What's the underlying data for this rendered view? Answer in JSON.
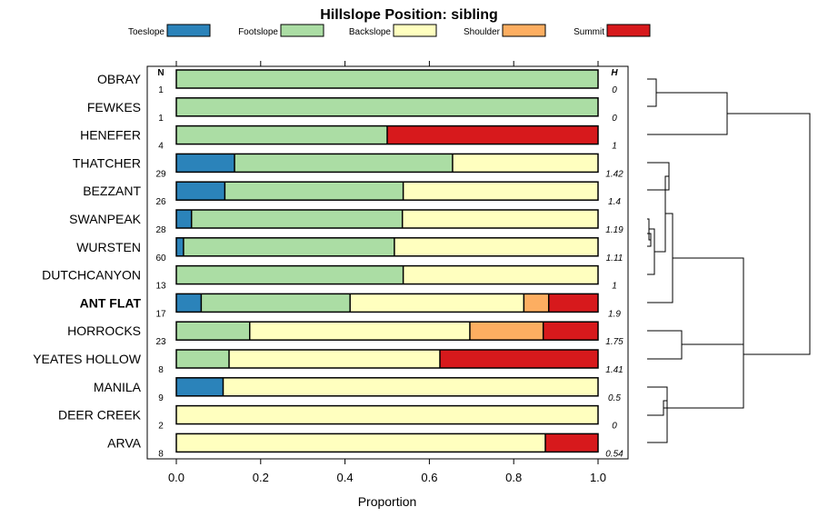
{
  "chart_data": {
    "type": "bar",
    "orientation": "horizontal",
    "stacked": true,
    "title": "Hillslope Position: sibling",
    "xlabel": "Proportion",
    "ylabel": "",
    "xlim": [
      0,
      1
    ],
    "xticks": [
      "0.0",
      "0.2",
      "0.4",
      "0.6",
      "0.8",
      "1.0"
    ],
    "n_header": "N",
    "h_header": "H",
    "highlight": "ANT FLAT",
    "legend": [
      {
        "name": "Toeslope",
        "color": "#2b83ba"
      },
      {
        "name": "Footslope",
        "color": "#abdda4"
      },
      {
        "name": "Backslope",
        "color": "#ffffbf"
      },
      {
        "name": "Shoulder",
        "color": "#fdae61"
      },
      {
        "name": "Summit",
        "color": "#d7191c"
      }
    ],
    "rows": [
      {
        "label": "OBRAY",
        "n": "1",
        "h": "0",
        "values": [
          0,
          1.0,
          0,
          0,
          0
        ]
      },
      {
        "label": "FEWKES",
        "n": "1",
        "h": "0",
        "values": [
          0,
          1.0,
          0,
          0,
          0
        ]
      },
      {
        "label": "HENEFER",
        "n": "4",
        "h": "1",
        "values": [
          0,
          0.5,
          0,
          0,
          0.5
        ]
      },
      {
        "label": "THATCHER",
        "n": "29",
        "h": "1.42",
        "values": [
          0.138,
          0.517,
          0.345,
          0,
          0
        ]
      },
      {
        "label": "BEZZANT",
        "n": "26",
        "h": "1.4",
        "values": [
          0.115,
          0.423,
          0.462,
          0,
          0
        ]
      },
      {
        "label": "SWANPEAK",
        "n": "28",
        "h": "1.19",
        "values": [
          0.036,
          0.5,
          0.464,
          0,
          0
        ]
      },
      {
        "label": "WURSTEN",
        "n": "60",
        "h": "1.11",
        "values": [
          0.017,
          0.5,
          0.483,
          0,
          0
        ]
      },
      {
        "label": "DUTCHCANYON",
        "n": "13",
        "h": "1",
        "values": [
          0,
          0.538,
          0.462,
          0,
          0
        ]
      },
      {
        "label": "ANT FLAT",
        "n": "17",
        "h": "1.9",
        "values": [
          0.059,
          0.353,
          0.412,
          0.059,
          0.117
        ]
      },
      {
        "label": "HORROCKS",
        "n": "23",
        "h": "1.75",
        "values": [
          0,
          0.174,
          0.522,
          0.174,
          0.13
        ]
      },
      {
        "label": "YEATES HOLLOW",
        "n": "8",
        "h": "1.41",
        "values": [
          0,
          0.125,
          0.5,
          0,
          0.375
        ]
      },
      {
        "label": "MANILA",
        "n": "9",
        "h": "0.5",
        "values": [
          0.111,
          0,
          0.889,
          0,
          0
        ]
      },
      {
        "label": "DEER CREEK",
        "n": "2",
        "h": "0",
        "values": [
          0,
          0,
          1.0,
          0,
          0
        ]
      },
      {
        "label": "ARVA",
        "n": "8",
        "h": "0.54",
        "values": [
          0,
          0,
          0.875,
          0,
          0.125
        ]
      }
    ]
  }
}
